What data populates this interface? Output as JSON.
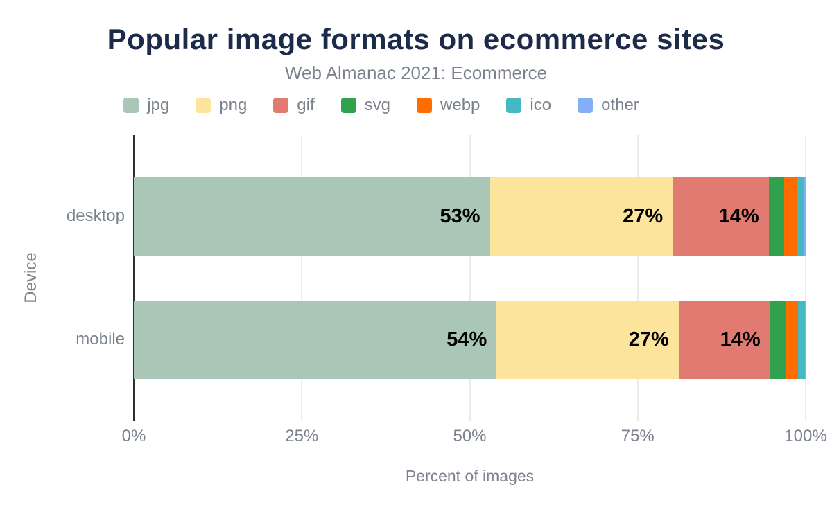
{
  "chart_data": {
    "type": "bar",
    "orientation": "horizontal",
    "stacked": true,
    "title": "Popular image formats on ecommerce sites",
    "subtitle": "Web Almanac 2021: Ecommerce",
    "categories": [
      "desktop",
      "mobile"
    ],
    "series": [
      {
        "name": "jpg",
        "color": "#a9c6b6",
        "values": [
          53.0,
          54.0
        ],
        "labels": [
          "53%",
          "54%"
        ]
      },
      {
        "name": "png",
        "color": "#fde49c",
        "values": [
          27.2,
          27.1
        ],
        "labels": [
          "27%",
          "27%"
        ]
      },
      {
        "name": "gif",
        "color": "#e17b71",
        "values": [
          14.3,
          13.6
        ],
        "labels": [
          "14%",
          "14%"
        ]
      },
      {
        "name": "svg",
        "color": "#30a14e",
        "values": [
          2.3,
          2.4
        ],
        "labels": [
          "",
          ""
        ]
      },
      {
        "name": "webp",
        "color": "#ff6d00",
        "values": [
          1.9,
          1.8
        ],
        "labels": [
          "",
          ""
        ]
      },
      {
        "name": "ico",
        "color": "#44b8c3",
        "values": [
          1.1,
          1.0
        ],
        "labels": [
          "",
          ""
        ]
      },
      {
        "name": "other",
        "color": "#85aff8",
        "values": [
          0.2,
          0.1
        ],
        "labels": [
          "",
          ""
        ]
      }
    ],
    "xlabel": "Percent of images",
    "ylabel": "Device",
    "x_ticks": [
      {
        "label": "0%",
        "value": 0
      },
      {
        "label": "25%",
        "value": 25
      },
      {
        "label": "50%",
        "value": 50
      },
      {
        "label": "75%",
        "value": 75
      },
      {
        "label": "100%",
        "value": 100
      }
    ],
    "xlim": [
      0,
      100
    ],
    "grid": true,
    "legend_position": "top"
  },
  "style": {
    "title_color": "#1b2b49",
    "muted_text_color": "#7b828d",
    "gridline_color": "#ececec",
    "axis_color": "#2f2f2f",
    "data_label_color": "#000000",
    "background": "#ffffff"
  }
}
